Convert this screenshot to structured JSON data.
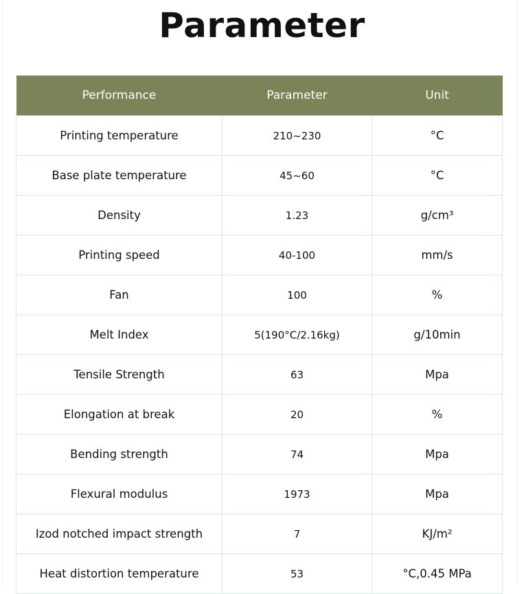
{
  "title": "Parameter",
  "table": {
    "headers": [
      "Performance",
      "Parameter",
      "Unit"
    ],
    "rows": [
      [
        "Printing temperature",
        "210~230",
        "°C"
      ],
      [
        "Base plate temperature",
        "45~60",
        "°C"
      ],
      [
        "Density",
        "1.23",
        "g/cm³"
      ],
      [
        "Printing speed",
        "40-100",
        "mm/s"
      ],
      [
        "Fan",
        "100",
        "%"
      ],
      [
        "Melt Index",
        "5(190°C/2.16kg)",
        "g/10min"
      ],
      [
        "Tensile Strength",
        "63",
        "Mpa"
      ],
      [
        "Elongation at break",
        "20",
        "%"
      ],
      [
        "Bending strength",
        "74",
        "Mpa"
      ],
      [
        "Flexural modulus",
        "1973",
        "Mpa"
      ],
      [
        "Izod notched impact strength",
        "7",
        "KJ/m²"
      ],
      [
        "Heat distortion temperature",
        "53",
        "°C,0.45 MPa"
      ]
    ]
  },
  "colors": {
    "header_bg": "#7b8459",
    "border": "#d6ebe8"
  }
}
